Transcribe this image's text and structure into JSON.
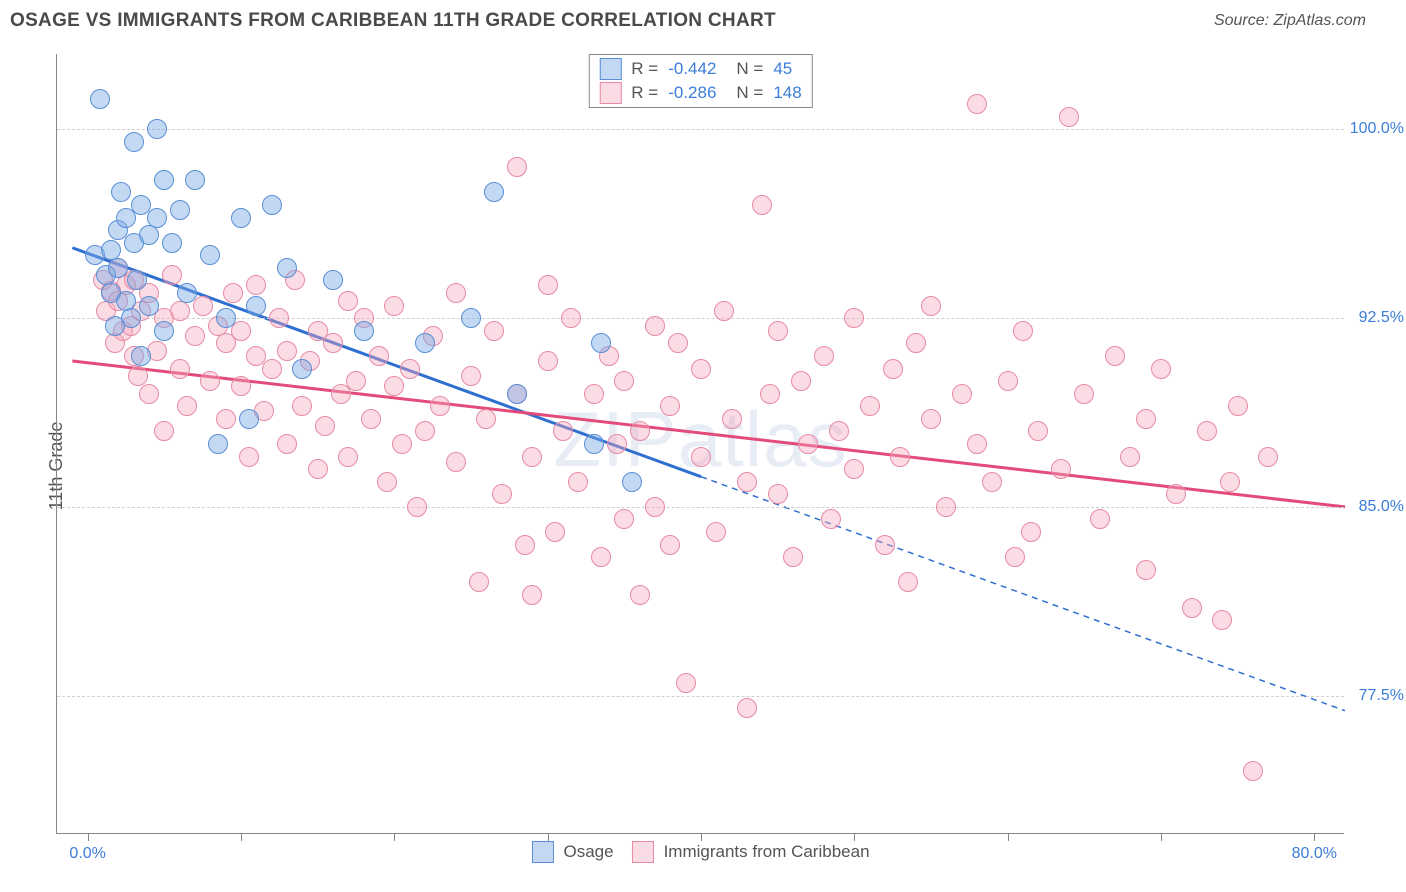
{
  "header": {
    "title": "OSAGE VS IMMIGRANTS FROM CARIBBEAN 11TH GRADE CORRELATION CHART",
    "source_prefix": "Source: ",
    "source_name": "ZipAtlas.com"
  },
  "watermark": "ZIPatlas",
  "ylabel": "11th Grade",
  "chart": {
    "type": "scatter",
    "xlim": [
      -2,
      82
    ],
    "ylim": [
      72,
      103
    ],
    "y_gridlines": [
      77.5,
      85.0,
      92.5,
      100.0
    ],
    "y_tick_labels": [
      "77.5%",
      "85.0%",
      "92.5%",
      "100.0%"
    ],
    "x_ticks": [
      0,
      10,
      20,
      30,
      40,
      50,
      60,
      70,
      80
    ],
    "x_labels": [
      {
        "x": 0,
        "text": "0.0%"
      },
      {
        "x": 80,
        "text": "80.0%"
      }
    ],
    "background_color": "#ffffff",
    "grid_color": "#d0d0d0",
    "axis_color": "#888888",
    "point_radius": 10
  },
  "series": [
    {
      "name": "Osage",
      "fill": "rgba(122,168,228,0.45)",
      "stroke": "#5a8fd6",
      "r_value": "-0.442",
      "n_value": "45",
      "trend": {
        "x1": -1,
        "y1": 95.3,
        "x2": 40,
        "y2": 86.2,
        "x2_dash": 82,
        "y2_dash": 76.9,
        "color": "#2f6fd0",
        "width": 3
      },
      "points": [
        [
          0.5,
          95.0
        ],
        [
          0.8,
          101.2
        ],
        [
          1.2,
          94.2
        ],
        [
          1.5,
          93.5
        ],
        [
          1.5,
          95.2
        ],
        [
          1.8,
          92.2
        ],
        [
          2.0,
          96.0
        ],
        [
          2.0,
          94.5
        ],
        [
          2.2,
          97.5
        ],
        [
          2.5,
          93.2
        ],
        [
          2.5,
          96.5
        ],
        [
          2.8,
          92.5
        ],
        [
          3.0,
          99.5
        ],
        [
          3.0,
          95.5
        ],
        [
          3.2,
          94.0
        ],
        [
          3.5,
          97.0
        ],
        [
          3.5,
          91.0
        ],
        [
          4.0,
          95.8
        ],
        [
          4.0,
          93.0
        ],
        [
          4.5,
          100.0
        ],
        [
          4.5,
          96.5
        ],
        [
          5.0,
          92.0
        ],
        [
          5.0,
          98.0
        ],
        [
          5.5,
          95.5
        ],
        [
          6.0,
          96.8
        ],
        [
          6.5,
          93.5
        ],
        [
          7.0,
          98.0
        ],
        [
          8.0,
          95.0
        ],
        [
          8.5,
          87.5
        ],
        [
          9.0,
          92.5
        ],
        [
          10.0,
          96.5
        ],
        [
          10.5,
          88.5
        ],
        [
          11.0,
          93.0
        ],
        [
          12.0,
          97.0
        ],
        [
          13.0,
          94.5
        ],
        [
          14.0,
          90.5
        ],
        [
          16.0,
          94.0
        ],
        [
          18.0,
          92.0
        ],
        [
          22.0,
          91.5
        ],
        [
          25.0,
          92.5
        ],
        [
          26.5,
          97.5
        ],
        [
          28.0,
          89.5
        ],
        [
          33.0,
          87.5
        ],
        [
          33.5,
          91.5
        ],
        [
          35.5,
          86.0
        ]
      ]
    },
    {
      "name": "Immigrants from Caribbean",
      "fill": "rgba(244,166,188,0.40)",
      "stroke": "#e68ba5",
      "r_value": "-0.286",
      "n_value": "148",
      "trend": {
        "x1": -1,
        "y1": 90.8,
        "x2": 82,
        "y2": 85.0,
        "x2_dash": 82,
        "y2_dash": 85.0,
        "color": "#e34b7a",
        "width": 3
      },
      "points": [
        [
          1.0,
          94.0
        ],
        [
          1.2,
          92.8
        ],
        [
          1.5,
          93.6
        ],
        [
          1.8,
          91.5
        ],
        [
          2.0,
          94.5
        ],
        [
          2.0,
          93.2
        ],
        [
          2.3,
          92.0
        ],
        [
          2.5,
          93.8
        ],
        [
          2.8,
          92.2
        ],
        [
          3.0,
          91.0
        ],
        [
          3.0,
          94.0
        ],
        [
          3.3,
          90.2
        ],
        [
          3.5,
          92.8
        ],
        [
          4.0,
          93.5
        ],
        [
          4.0,
          89.5
        ],
        [
          4.5,
          91.2
        ],
        [
          5.0,
          92.5
        ],
        [
          5.0,
          88.0
        ],
        [
          5.5,
          94.2
        ],
        [
          6.0,
          90.5
        ],
        [
          6.0,
          92.8
        ],
        [
          6.5,
          89.0
        ],
        [
          7.0,
          91.8
        ],
        [
          7.5,
          93.0
        ],
        [
          8.0,
          90.0
        ],
        [
          8.5,
          92.2
        ],
        [
          9.0,
          88.5
        ],
        [
          9.0,
          91.5
        ],
        [
          9.5,
          93.5
        ],
        [
          10.0,
          89.8
        ],
        [
          10.0,
          92.0
        ],
        [
          10.5,
          87.0
        ],
        [
          11.0,
          91.0
        ],
        [
          11.0,
          93.8
        ],
        [
          11.5,
          88.8
        ],
        [
          12.0,
          90.5
        ],
        [
          12.5,
          92.5
        ],
        [
          13.0,
          87.5
        ],
        [
          13.0,
          91.2
        ],
        [
          13.5,
          94.0
        ],
        [
          14.0,
          89.0
        ],
        [
          14.5,
          90.8
        ],
        [
          15.0,
          92.0
        ],
        [
          15.0,
          86.5
        ],
        [
          15.5,
          88.2
        ],
        [
          16.0,
          91.5
        ],
        [
          16.5,
          89.5
        ],
        [
          17.0,
          93.2
        ],
        [
          17.0,
          87.0
        ],
        [
          17.5,
          90.0
        ],
        [
          18.0,
          92.5
        ],
        [
          18.5,
          88.5
        ],
        [
          19.0,
          91.0
        ],
        [
          19.5,
          86.0
        ],
        [
          20.0,
          89.8
        ],
        [
          20.0,
          93.0
        ],
        [
          20.5,
          87.5
        ],
        [
          21.0,
          90.5
        ],
        [
          21.5,
          85.0
        ],
        [
          22.0,
          88.0
        ],
        [
          22.5,
          91.8
        ],
        [
          23.0,
          89.0
        ],
        [
          24.0,
          93.5
        ],
        [
          24.0,
          86.8
        ],
        [
          25.0,
          90.2
        ],
        [
          25.5,
          82.0
        ],
        [
          26.0,
          88.5
        ],
        [
          26.5,
          92.0
        ],
        [
          27.0,
          85.5
        ],
        [
          28.0,
          98.5
        ],
        [
          28.0,
          89.5
        ],
        [
          28.5,
          83.5
        ],
        [
          29.0,
          81.5
        ],
        [
          29.0,
          87.0
        ],
        [
          30.0,
          90.8
        ],
        [
          30.0,
          93.8
        ],
        [
          30.5,
          84.0
        ],
        [
          31.0,
          88.0
        ],
        [
          31.5,
          92.5
        ],
        [
          32.0,
          86.0
        ],
        [
          33.0,
          89.5
        ],
        [
          33.5,
          83.0
        ],
        [
          34.0,
          91.0
        ],
        [
          34.5,
          87.5
        ],
        [
          35.0,
          84.5
        ],
        [
          35.0,
          90.0
        ],
        [
          36.0,
          88.0
        ],
        [
          37.0,
          92.2
        ],
        [
          37.0,
          85.0
        ],
        [
          38.0,
          89.0
        ],
        [
          38.0,
          83.5
        ],
        [
          38.5,
          91.5
        ],
        [
          39.0,
          78.0
        ],
        [
          40.0,
          87.0
        ],
        [
          40.0,
          90.5
        ],
        [
          41.0,
          84.0
        ],
        [
          41.5,
          92.8
        ],
        [
          42.0,
          88.5
        ],
        [
          43.0,
          86.0
        ],
        [
          43.0,
          77.0
        ],
        [
          44.0,
          97.0
        ],
        [
          44.5,
          89.5
        ],
        [
          45.0,
          92.0
        ],
        [
          45.0,
          85.5
        ],
        [
          46.0,
          83.0
        ],
        [
          46.5,
          90.0
        ],
        [
          47.0,
          87.5
        ],
        [
          48.0,
          91.0
        ],
        [
          48.5,
          84.5
        ],
        [
          49.0,
          88.0
        ],
        [
          50.0,
          92.5
        ],
        [
          50.0,
          86.5
        ],
        [
          51.0,
          89.0
        ],
        [
          52.0,
          83.5
        ],
        [
          52.5,
          90.5
        ],
        [
          53.0,
          87.0
        ],
        [
          54.0,
          91.5
        ],
        [
          55.0,
          88.5
        ],
        [
          55.0,
          93.0
        ],
        [
          56.0,
          85.0
        ],
        [
          57.0,
          89.5
        ],
        [
          58.0,
          101.0
        ],
        [
          58.0,
          87.5
        ],
        [
          59.0,
          86.0
        ],
        [
          60.0,
          90.0
        ],
        [
          60.5,
          83.0
        ],
        [
          61.0,
          92.0
        ],
        [
          62.0,
          88.0
        ],
        [
          64.0,
          100.5
        ],
        [
          63.5,
          86.5
        ],
        [
          65.0,
          89.5
        ],
        [
          66.0,
          84.5
        ],
        [
          67.0,
          91.0
        ],
        [
          68.0,
          87.0
        ],
        [
          69.0,
          88.5
        ],
        [
          70.0,
          90.5
        ],
        [
          71.0,
          85.5
        ],
        [
          72.0,
          81.0
        ],
        [
          73.0,
          88.0
        ],
        [
          74.0,
          80.5
        ],
        [
          74.5,
          86.0
        ],
        [
          75.0,
          89.0
        ],
        [
          76.0,
          74.5
        ],
        [
          77.0,
          87.0
        ],
        [
          69.0,
          82.5
        ],
        [
          61.5,
          84.0
        ],
        [
          53.5,
          82.0
        ],
        [
          36.0,
          81.5
        ]
      ]
    }
  ],
  "legend_bottom": [
    {
      "swatch_fill": "rgba(122,168,228,0.45)",
      "swatch_stroke": "#5a8fd6",
      "label": "Osage"
    },
    {
      "swatch_fill": "rgba(244,166,188,0.40)",
      "swatch_stroke": "#e68ba5",
      "label": "Immigrants from Caribbean"
    }
  ],
  "legend_top_labels": {
    "r": "R =",
    "n": "N ="
  }
}
